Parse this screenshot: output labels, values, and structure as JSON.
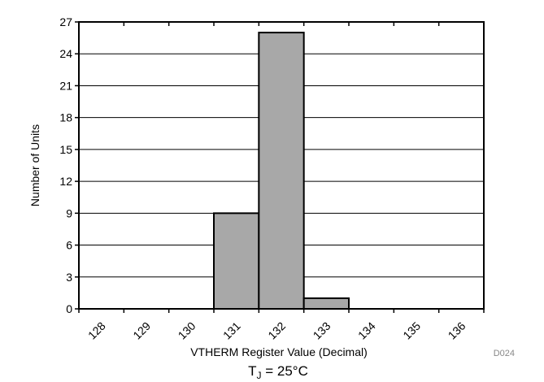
{
  "chart_data": {
    "type": "bar",
    "categories": [
      "128",
      "129",
      "130",
      "131",
      "132",
      "133",
      "134",
      "135",
      "136"
    ],
    "values": [
      0,
      0,
      0,
      9,
      26,
      1,
      0,
      0,
      0
    ],
    "xlabel": "VTHERM Register Value (Decimal)",
    "ylabel": "Number of Units",
    "ylim": [
      0,
      27
    ],
    "yticks": [
      0,
      3,
      6,
      9,
      12,
      15,
      18,
      21,
      24,
      27
    ],
    "grid": true,
    "bar_color": "#a8a8a8",
    "annotation_id": "D024",
    "condition": {
      "label": "T",
      "subscript": "J",
      "value": " = 25°C"
    }
  }
}
